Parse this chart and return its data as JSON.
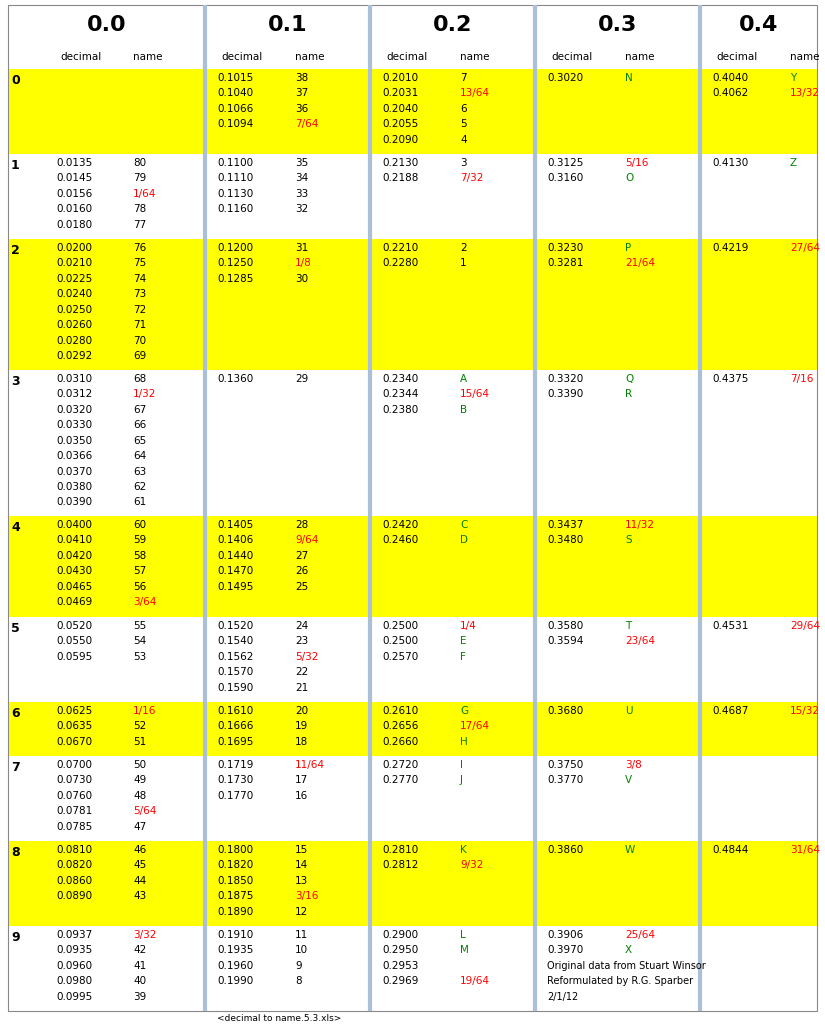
{
  "title_row": [
    "0.0",
    "0.1",
    "0.2",
    "0.3",
    "0.4"
  ],
  "background": "#ffffff",
  "yellow": "#ffff00",
  "col_sep_color": "#aac0d8",
  "text_black": "#000000",
  "text_red": "#ff0000",
  "text_green": "#008000",
  "rows": [
    {
      "id": "0",
      "bg": "yellow",
      "c0": [],
      "c1": [
        [
          "0.1015",
          "38",
          "k"
        ],
        [
          "0.1040",
          "37",
          "k"
        ],
        [
          "0.1066",
          "36",
          "k"
        ],
        [
          "0.1094",
          "7/64",
          "r"
        ]
      ],
      "c2": [
        [
          "0.2010",
          "7",
          "k"
        ],
        [
          "0.2031",
          "13/64",
          "r"
        ],
        [
          "0.2040",
          "6",
          "k"
        ],
        [
          "0.2055",
          "5",
          "k"
        ],
        [
          "0.2090",
          "4",
          "k"
        ]
      ],
      "c3": [
        [
          "0.3020",
          "N",
          "g"
        ]
      ],
      "c4": [
        [
          "0.4040",
          "Y",
          "g"
        ],
        [
          "0.4062",
          "13/32",
          "r"
        ]
      ]
    },
    {
      "id": "1",
      "bg": "white",
      "c0": [
        [
          "0.0135",
          "80",
          "k"
        ],
        [
          "0.0145",
          "79",
          "k"
        ],
        [
          "0.0156",
          "1/64",
          "r"
        ],
        [
          "0.0160",
          "78",
          "k"
        ],
        [
          "0.0180",
          "77",
          "k"
        ]
      ],
      "c1": [
        [
          "0.1100",
          "35",
          "k"
        ],
        [
          "0.1110",
          "34",
          "k"
        ],
        [
          "0.1130",
          "33",
          "k"
        ],
        [
          "0.1160",
          "32",
          "k"
        ]
      ],
      "c2": [
        [
          "0.2130",
          "3",
          "k"
        ],
        [
          "0.2188",
          "7/32",
          "r"
        ]
      ],
      "c3": [
        [
          "0.3125",
          "5/16",
          "r"
        ],
        [
          "0.3160",
          "O",
          "g"
        ]
      ],
      "c4": [
        [
          "0.4130",
          "Z",
          "g"
        ]
      ]
    },
    {
      "id": "2",
      "bg": "yellow",
      "c0": [
        [
          "0.0200",
          "76",
          "k"
        ],
        [
          "0.0210",
          "75",
          "k"
        ],
        [
          "0.0225",
          "74",
          "k"
        ],
        [
          "0.0240",
          "73",
          "k"
        ],
        [
          "0.0250",
          "72",
          "k"
        ],
        [
          "0.0260",
          "71",
          "k"
        ],
        [
          "0.0280",
          "70",
          "k"
        ],
        [
          "0.0292",
          "69",
          "k"
        ]
      ],
      "c1": [
        [
          "0.1200",
          "31",
          "k"
        ],
        [
          "0.1250",
          "1/8",
          "r"
        ],
        [
          "0.1285",
          "30",
          "k"
        ]
      ],
      "c2": [
        [
          "0.2210",
          "2",
          "k"
        ],
        [
          "0.2280",
          "1",
          "k"
        ]
      ],
      "c3": [
        [
          "0.3230",
          "P",
          "g"
        ],
        [
          "0.3281",
          "21/64",
          "r"
        ]
      ],
      "c4": [
        [
          "0.4219",
          "27/64",
          "r"
        ]
      ]
    },
    {
      "id": "3",
      "bg": "white",
      "c0": [
        [
          "0.0310",
          "68",
          "k"
        ],
        [
          "0.0312",
          "1/32",
          "r"
        ],
        [
          "0.0320",
          "67",
          "k"
        ],
        [
          "0.0330",
          "66",
          "k"
        ],
        [
          "0.0350",
          "65",
          "k"
        ],
        [
          "0.0366",
          "64",
          "k"
        ],
        [
          "0.0370",
          "63",
          "k"
        ],
        [
          "0.0380",
          "62",
          "k"
        ],
        [
          "0.0390",
          "61",
          "k"
        ]
      ],
      "c1": [
        [
          "0.1360",
          "29",
          "k"
        ]
      ],
      "c2": [
        [
          "0.2340",
          "A",
          "g"
        ],
        [
          "0.2344",
          "15/64",
          "r"
        ],
        [
          "0.2380",
          "B",
          "g"
        ]
      ],
      "c3": [
        [
          "0.3320",
          "Q",
          "g"
        ],
        [
          "0.3390",
          "R",
          "g"
        ]
      ],
      "c4": [
        [
          "0.4375",
          "7/16",
          "r"
        ]
      ]
    },
    {
      "id": "4",
      "bg": "yellow",
      "c0": [
        [
          "0.0400",
          "60",
          "k"
        ],
        [
          "0.0410",
          "59",
          "k"
        ],
        [
          "0.0420",
          "58",
          "k"
        ],
        [
          "0.0430",
          "57",
          "k"
        ],
        [
          "0.0465",
          "56",
          "k"
        ],
        [
          "0.0469",
          "3/64",
          "r"
        ]
      ],
      "c1": [
        [
          "0.1405",
          "28",
          "k"
        ],
        [
          "0.1406",
          "9/64",
          "r"
        ],
        [
          "0.1440",
          "27",
          "k"
        ],
        [
          "0.1470",
          "26",
          "k"
        ],
        [
          "0.1495",
          "25",
          "k"
        ]
      ],
      "c2": [
        [
          "0.2420",
          "C",
          "g"
        ],
        [
          "0.2460",
          "D",
          "g"
        ]
      ],
      "c3": [
        [
          "0.3437",
          "11/32",
          "r"
        ],
        [
          "0.3480",
          "S",
          "g"
        ]
      ],
      "c4": []
    },
    {
      "id": "5",
      "bg": "white",
      "c0": [
        [
          "0.0520",
          "55",
          "k"
        ],
        [
          "0.0550",
          "54",
          "k"
        ],
        [
          "0.0595",
          "53",
          "k"
        ]
      ],
      "c1": [
        [
          "0.1520",
          "24",
          "k"
        ],
        [
          "0.1540",
          "23",
          "k"
        ],
        [
          "0.1562",
          "5/32",
          "r"
        ],
        [
          "0.1570",
          "22",
          "k"
        ],
        [
          "0.1590",
          "21",
          "k"
        ]
      ],
      "c2": [
        [
          "0.2500",
          "1/4",
          "r"
        ],
        [
          "0.2500",
          "E",
          "g"
        ],
        [
          "0.2570",
          "F",
          "g"
        ]
      ],
      "c3": [
        [
          "0.3580",
          "T",
          "g"
        ],
        [
          "0.3594",
          "23/64",
          "r"
        ]
      ],
      "c4": [
        [
          "0.4531",
          "29/64",
          "r"
        ]
      ]
    },
    {
      "id": "6",
      "bg": "yellow",
      "c0": [
        [
          "0.0625",
          "1/16",
          "r"
        ],
        [
          "0.0635",
          "52",
          "k"
        ],
        [
          "0.0670",
          "51",
          "k"
        ]
      ],
      "c1": [
        [
          "0.1610",
          "20",
          "k"
        ],
        [
          "0.1666",
          "19",
          "k"
        ],
        [
          "0.1695",
          "18",
          "k"
        ]
      ],
      "c2": [
        [
          "0.2610",
          "G",
          "g"
        ],
        [
          "0.2656",
          "17/64",
          "r"
        ],
        [
          "0.2660",
          "H",
          "g"
        ]
      ],
      "c3": [
        [
          "0.3680",
          "U",
          "g"
        ]
      ],
      "c4": [
        [
          "0.4687",
          "15/32",
          "r"
        ]
      ]
    },
    {
      "id": "7",
      "bg": "white",
      "c0": [
        [
          "0.0700",
          "50",
          "k"
        ],
        [
          "0.0730",
          "49",
          "k"
        ],
        [
          "0.0760",
          "48",
          "k"
        ],
        [
          "0.0781",
          "5/64",
          "r"
        ],
        [
          "0.0785",
          "47",
          "k"
        ]
      ],
      "c1": [
        [
          "0.1719",
          "11/64",
          "r"
        ],
        [
          "0.1730",
          "17",
          "k"
        ],
        [
          "0.1770",
          "16",
          "k"
        ]
      ],
      "c2": [
        [
          "0.2720",
          "I",
          "g"
        ],
        [
          "0.2770",
          "J",
          "g"
        ]
      ],
      "c3": [
        [
          "0.3750",
          "3/8",
          "r"
        ],
        [
          "0.3770",
          "V",
          "g"
        ]
      ],
      "c4": []
    },
    {
      "id": "8",
      "bg": "yellow",
      "c0": [
        [
          "0.0810",
          "46",
          "k"
        ],
        [
          "0.0820",
          "45",
          "k"
        ],
        [
          "0.0860",
          "44",
          "k"
        ],
        [
          "0.0890",
          "43",
          "k"
        ]
      ],
      "c1": [
        [
          "0.1800",
          "15",
          "k"
        ],
        [
          "0.1820",
          "14",
          "k"
        ],
        [
          "0.1850",
          "13",
          "k"
        ],
        [
          "0.1875",
          "3/16",
          "r"
        ],
        [
          "0.1890",
          "12",
          "k"
        ]
      ],
      "c2": [
        [
          "0.2810",
          "K",
          "g"
        ],
        [
          "0.2812",
          "9/32",
          "r"
        ]
      ],
      "c3": [
        [
          "0.3860",
          "W",
          "g"
        ]
      ],
      "c4": [
        [
          "0.4844",
          "31/64",
          "r"
        ]
      ]
    },
    {
      "id": "9",
      "bg": "white",
      "c0": [
        [
          "0.0937",
          "3/32",
          "r"
        ],
        [
          "0.0935",
          "42",
          "k"
        ],
        [
          "0.0960",
          "41",
          "k"
        ],
        [
          "0.0980",
          "40",
          "k"
        ],
        [
          "0.0995",
          "39",
          "k"
        ]
      ],
      "c1": [
        [
          "0.1910",
          "11",
          "k"
        ],
        [
          "0.1935",
          "10",
          "k"
        ],
        [
          "0.1960",
          "9",
          "k"
        ],
        [
          "0.1990",
          "8",
          "k"
        ]
      ],
      "c2": [
        [
          "0.2900",
          "L",
          "g"
        ],
        [
          "0.2950",
          "M",
          "g"
        ],
        [
          "0.2953",
          "",
          "k"
        ],
        [
          "0.2969",
          "19/64",
          "r"
        ]
      ],
      "c3": [
        [
          "0.3906",
          "25/64",
          "r"
        ],
        [
          "0.3970",
          "X",
          "g"
        ]
      ],
      "c3_note": [
        "Original data from Stuart Winsor",
        "Reformulated by R.G. Sparber",
        "2/1/12"
      ],
      "c4": []
    }
  ],
  "footer": "<decimal to name.5.3.xls>"
}
